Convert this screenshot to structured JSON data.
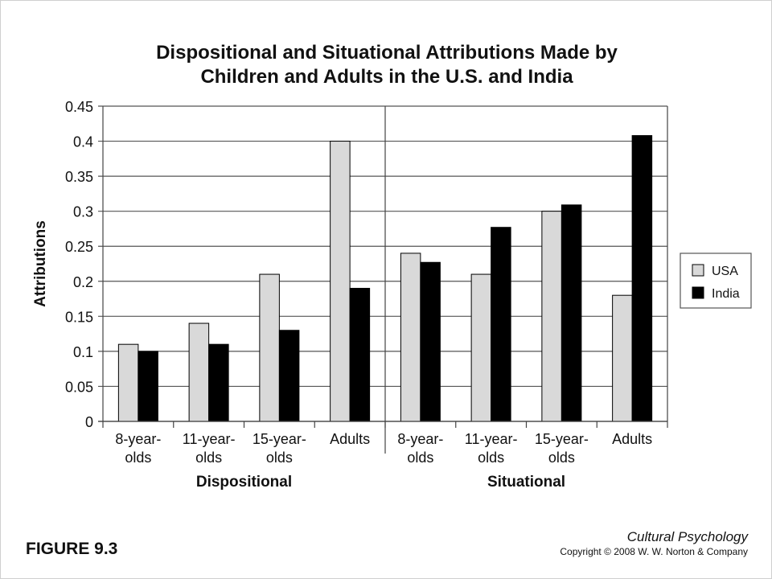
{
  "chart_data": {
    "type": "bar",
    "title": [
      "Dispositional and Situational Attributions Made by",
      "Children and Adults in the U.S. and India"
    ],
    "ylabel": "Attributions",
    "ylim": [
      0,
      0.45
    ],
    "yticks": [
      "0",
      "0.05",
      "0.1",
      "0.15",
      "0.2",
      "0.25",
      "0.3",
      "0.35",
      "0.4",
      "0.45"
    ],
    "grid": true,
    "legend_position": "right",
    "groups": [
      {
        "name": "Dispositional",
        "categories": [
          [
            "8-year-",
            "olds"
          ],
          [
            "11-year-",
            "olds"
          ],
          [
            "15-year-",
            "olds"
          ],
          [
            "Adults"
          ]
        ]
      },
      {
        "name": "Situational",
        "categories": [
          [
            "8-year-",
            "olds"
          ],
          [
            "11-year-",
            "olds"
          ],
          [
            "15-year-",
            "olds"
          ],
          [
            "Adults"
          ]
        ]
      }
    ],
    "series": [
      {
        "name": "USA",
        "color": "#d9d9d9",
        "values": [
          0.11,
          0.14,
          0.21,
          0.4,
          0.24,
          0.21,
          0.3,
          0.18
        ]
      },
      {
        "name": "India",
        "color": "#000000",
        "values": [
          0.1,
          0.11,
          0.13,
          0.19,
          0.227,
          0.277,
          0.309,
          0.408
        ]
      }
    ]
  },
  "footer": {
    "figure_label": "FIGURE 9.3",
    "book_title": "Cultural Psychology",
    "copyright": "Copyright © 2008 W. W. Norton & Company"
  }
}
